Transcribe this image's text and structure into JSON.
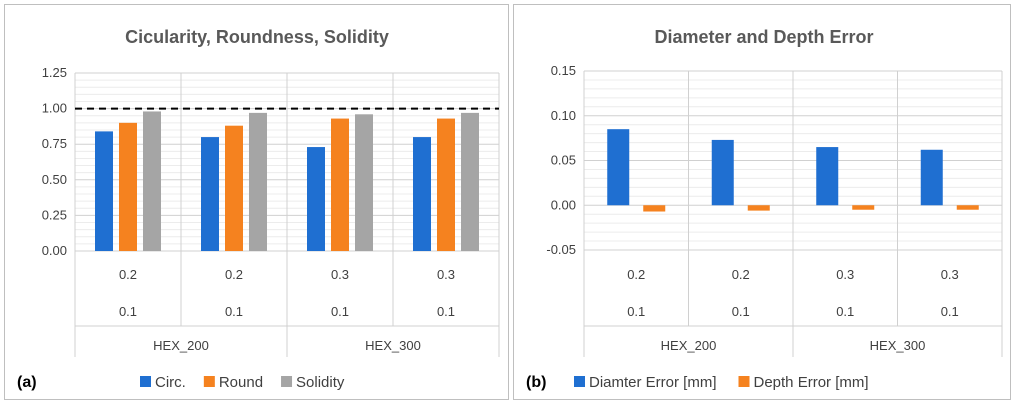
{
  "chart_data": [
    {
      "type": "bar",
      "panel_label": "(a)",
      "title": "Cicularity, Roundness, Solidity",
      "categories": [
        {
          "level1": "0.2",
          "level2": "0.1",
          "group": "HEX_200"
        },
        {
          "level1": "0.2",
          "level2": "0.1",
          "group": "HEX_200"
        },
        {
          "level1": "0.3",
          "level2": "0.1",
          "group": "HEX_300"
        },
        {
          "level1": "0.3",
          "level2": "0.1",
          "group": "HEX_300"
        }
      ],
      "groups": [
        "HEX_200",
        "HEX_300"
      ],
      "series": [
        {
          "name": "Circ.",
          "color": "#1f6fd1",
          "values": [
            0.84,
            0.8,
            0.73,
            0.8
          ]
        },
        {
          "name": "Round",
          "color": "#f5821f",
          "values": [
            0.9,
            0.88,
            0.93,
            0.93
          ]
        },
        {
          "name": "Solidity",
          "color": "#a5a5a5",
          "values": [
            0.98,
            0.97,
            0.96,
            0.97
          ]
        }
      ],
      "ylim": [
        0,
        1.25
      ],
      "yticks": [
        "0.00",
        "0.25",
        "0.50",
        "0.75",
        "1.00",
        "1.25"
      ],
      "reference_line": 1.0,
      "legend_position": "bottom",
      "grid": true
    },
    {
      "type": "bar",
      "panel_label": "(b)",
      "title": "Diameter and Depth Error",
      "categories": [
        {
          "level1": "0.2",
          "level2": "0.1",
          "group": "HEX_200"
        },
        {
          "level1": "0.2",
          "level2": "0.1",
          "group": "HEX_200"
        },
        {
          "level1": "0.3",
          "level2": "0.1",
          "group": "HEX_300"
        },
        {
          "level1": "0.3",
          "level2": "0.1",
          "group": "HEX_300"
        }
      ],
      "groups": [
        "HEX_200",
        "HEX_300"
      ],
      "series": [
        {
          "name": "Diamter Error [mm]",
          "color": "#1f6fd1",
          "values": [
            0.085,
            0.073,
            0.065,
            0.062
          ]
        },
        {
          "name": "Depth Error [mm]",
          "color": "#f5821f",
          "values": [
            -0.007,
            -0.006,
            -0.005,
            -0.005
          ]
        }
      ],
      "ylim": [
        -0.05,
        0.15
      ],
      "yticks": [
        "-0.05",
        "0.00",
        "0.05",
        "0.10",
        "0.15"
      ],
      "legend_position": "bottom",
      "grid": true
    }
  ]
}
